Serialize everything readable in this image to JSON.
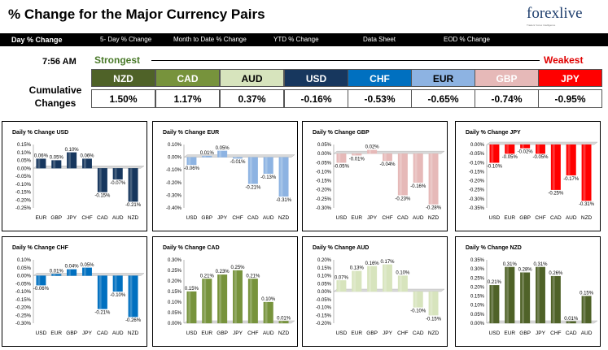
{
  "header": {
    "title": "% Change for the Major Currency Pairs",
    "logo_text": "forexlive",
    "logo_tagline": "Traders' Forex Intelligence"
  },
  "nav": [
    {
      "label": "Day % Change",
      "active": true
    },
    {
      "label": "5- Day % Change"
    },
    {
      "label": "Month to Date % Change"
    },
    {
      "label": "YTD % Change"
    },
    {
      "label": "Data Sheet"
    },
    {
      "label": "EOD % Change"
    }
  ],
  "summary": {
    "time": "7:56 AM",
    "strongest": "Strongest",
    "weakest": "Weakest",
    "row_label": "Cumulative Changes",
    "currencies": [
      {
        "name": "NZD",
        "value": "1.50%",
        "bg": "#4f6228",
        "fg": "#ffffff"
      },
      {
        "name": "CAD",
        "value": "1.17%",
        "bg": "#77933c",
        "fg": "#ffffff"
      },
      {
        "name": "AUD",
        "value": "0.37%",
        "bg": "#d7e4bd",
        "fg": "#000000"
      },
      {
        "name": "USD",
        "value": "-0.16%",
        "bg": "#17375e",
        "fg": "#ffffff"
      },
      {
        "name": "CHF",
        "value": "-0.53%",
        "bg": "#0070c0",
        "fg": "#ffffff"
      },
      {
        "name": "EUR",
        "value": "-0.65%",
        "bg": "#8db3e2",
        "fg": "#000000"
      },
      {
        "name": "GBP",
        "value": "-0.74%",
        "bg": "#e6b9b8",
        "fg": "#ffffff"
      },
      {
        "name": "JPY",
        "value": "-0.95%",
        "bg": "#ff0000",
        "fg": "#ffffff"
      }
    ]
  },
  "chart_data": [
    {
      "type": "bar",
      "title": "Daily % Change USD",
      "categories": [
        "EUR",
        "GBP",
        "JPY",
        "CHF",
        "CAD",
        "AUD",
        "NZD"
      ],
      "values": [
        0.06,
        0.05,
        0.1,
        0.06,
        -0.15,
        -0.07,
        -0.21
      ],
      "labels": [
        "0.06%",
        "0.05%",
        "0.10%",
        "0.06%",
        "-0.15%",
        "-0.07%",
        "-0.21%"
      ],
      "ylim": [
        -0.25,
        0.15
      ],
      "ticks": [
        "0.15%",
        "0.10%",
        "0.05%",
        "0.00%",
        "-0.05%",
        "-0.10%",
        "-0.15%",
        "-0.20%",
        "-0.25%"
      ],
      "color": "#17375e"
    },
    {
      "type": "bar",
      "title": "Daily % Change EUR",
      "categories": [
        "USD",
        "GBP",
        "JPY",
        "CHF",
        "CAD",
        "AUD",
        "NZD"
      ],
      "values": [
        -0.06,
        0.01,
        0.05,
        -0.01,
        -0.21,
        -0.13,
        -0.31
      ],
      "labels": [
        "-0.06%",
        "0.01%",
        "0.05%",
        "-0.01%",
        "-0.21%",
        "-0.13%",
        "-0.31%"
      ],
      "ylim": [
        -0.4,
        0.1
      ],
      "ticks": [
        "0.10%",
        "0.00%",
        "-0.10%",
        "-0.20%",
        "-0.30%",
        "-0.40%"
      ],
      "color": "#8db3e2"
    },
    {
      "type": "bar",
      "title": "Daily % Change GBP",
      "categories": [
        "USD",
        "EUR",
        "JPY",
        "CHF",
        "CAD",
        "AUD",
        "NZD"
      ],
      "values": [
        -0.05,
        -0.01,
        0.02,
        -0.04,
        -0.23,
        -0.16,
        -0.28
      ],
      "labels": [
        "-0.05%",
        "-0.01%",
        "0.02%",
        "-0.04%",
        "-0.23%",
        "-0.16%",
        "-0.28%"
      ],
      "ylim": [
        -0.3,
        0.05
      ],
      "ticks": [
        "0.05%",
        "0.00%",
        "-0.05%",
        "-0.10%",
        "-0.15%",
        "-0.20%",
        "-0.25%",
        "-0.30%"
      ],
      "color": "#e6b9b8"
    },
    {
      "type": "bar",
      "title": "Daily % Change JPY",
      "categories": [
        "USD",
        "EUR",
        "GBP",
        "CHF",
        "CAD",
        "AUD",
        "NZD"
      ],
      "values": [
        -0.1,
        -0.05,
        -0.02,
        -0.05,
        -0.25,
        -0.17,
        -0.31
      ],
      "labels": [
        "-0.10%",
        "-0.05%",
        "-0.02%",
        "-0.05%",
        "-0.25%",
        "-0.17%",
        "-0.31%"
      ],
      "ylim": [
        -0.35,
        0.0
      ],
      "ticks": [
        "0.00%",
        "-0.05%",
        "-0.10%",
        "-0.15%",
        "-0.20%",
        "-0.25%",
        "-0.30%",
        "-0.35%"
      ],
      "color": "#ff0000"
    },
    {
      "type": "bar",
      "title": "Daily % Change CHF",
      "categories": [
        "USD",
        "EUR",
        "GBP",
        "JPY",
        "CAD",
        "AUD",
        "NZD"
      ],
      "values": [
        -0.06,
        0.01,
        0.04,
        0.05,
        -0.21,
        -0.1,
        -0.26
      ],
      "labels": [
        "-0.06%",
        "0.01%",
        "0.04%",
        "0.05%",
        "-0.21%",
        "-0.10%",
        "-0.26%"
      ],
      "ylim": [
        -0.3,
        0.1
      ],
      "ticks": [
        "0.10%",
        "0.05%",
        "0.00%",
        "-0.05%",
        "-0.10%",
        "-0.15%",
        "-0.20%",
        "-0.25%",
        "-0.30%"
      ],
      "color": "#0070c0"
    },
    {
      "type": "bar",
      "title": "Daily % Change CAD",
      "categories": [
        "USD",
        "EUR",
        "GBP",
        "JPY",
        "CHF",
        "AUD",
        "NZD"
      ],
      "values": [
        0.15,
        0.21,
        0.23,
        0.25,
        0.21,
        0.1,
        0.01
      ],
      "labels": [
        "0.15%",
        "0.21%",
        "0.23%",
        "0.25%",
        "0.21%",
        "0.10%",
        "0.01%"
      ],
      "ylim": [
        0.0,
        0.3
      ],
      "ticks": [
        "0.30%",
        "0.25%",
        "0.20%",
        "0.15%",
        "0.10%",
        "0.05%",
        "0.00%"
      ],
      "color": "#77933c"
    },
    {
      "type": "bar",
      "title": "Daily % Change AUD",
      "categories": [
        "USD",
        "EUR",
        "GBP",
        "JPY",
        "CHF",
        "CAD",
        "NZD"
      ],
      "values": [
        0.07,
        0.13,
        0.16,
        0.17,
        0.1,
        -0.1,
        -0.15
      ],
      "labels": [
        "0.07%",
        "0.13%",
        "0.16%",
        "0.17%",
        "0.10%",
        "-0.10%",
        "-0.15%"
      ],
      "ylim": [
        -0.2,
        0.2
      ],
      "ticks": [
        "0.20%",
        "0.15%",
        "0.10%",
        "0.05%",
        "0.00%",
        "-0.05%",
        "-0.10%",
        "-0.15%",
        "-0.20%"
      ],
      "color": "#d7e4bd"
    },
    {
      "type": "bar",
      "title": "Daily % Change NZD",
      "categories": [
        "USD",
        "EUR",
        "GBP",
        "JPY",
        "CHF",
        "CAD",
        "AUD"
      ],
      "values": [
        0.21,
        0.31,
        0.28,
        0.31,
        0.26,
        0.01,
        0.15
      ],
      "labels": [
        "0.21%",
        "0.31%",
        "0.28%",
        "0.31%",
        "0.26%",
        "0.01%",
        "0.15%"
      ],
      "ylim": [
        0.0,
        0.35
      ],
      "ticks": [
        "0.35%",
        "0.30%",
        "0.25%",
        "0.20%",
        "0.15%",
        "0.10%",
        "0.05%",
        "0.00%"
      ],
      "color": "#4f6228"
    }
  ]
}
